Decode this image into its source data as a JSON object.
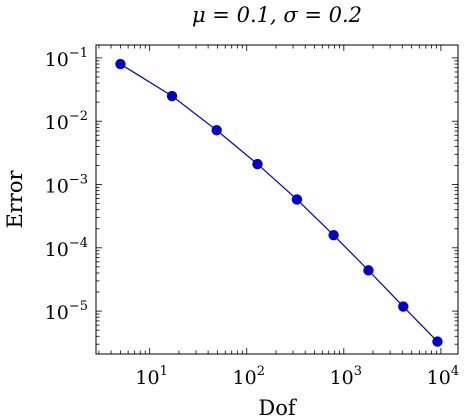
{
  "chart_data": {
    "type": "line",
    "title": "μ = 0.1, σ = 0.2",
    "xlabel": "Dof",
    "ylabel": "Error",
    "xscale": "log",
    "yscale": "log",
    "xlim": [
      2.8,
      15000
    ],
    "ylim": [
      2.1e-06,
      0.16
    ],
    "grid": false,
    "legend": "none",
    "x_ticks": [
      {
        "base": "10",
        "exp": "1",
        "value": 10
      },
      {
        "base": "10",
        "exp": "2",
        "value": 100
      },
      {
        "base": "10",
        "exp": "3",
        "value": 1000
      },
      {
        "base": "10",
        "exp": "4",
        "value": 10000
      }
    ],
    "y_ticks": [
      {
        "base": "10",
        "exp": "−1",
        "value": 0.1
      },
      {
        "base": "10",
        "exp": "−2",
        "value": 0.01
      },
      {
        "base": "10",
        "exp": "−3",
        "value": 0.001
      },
      {
        "base": "10",
        "exp": "−4",
        "value": 0.0001
      },
      {
        "base": "10",
        "exp": "−5",
        "value": 1e-05
      }
    ],
    "series": [
      {
        "color": "#0000cc",
        "x": [
          5,
          17,
          49,
          129,
          329,
          785,
          1793,
          4097,
          9217
        ],
        "y": [
          0.08,
          0.025,
          0.0072,
          0.0021,
          0.00058,
          0.000158,
          4.4e-05,
          1.18e-05,
          3.3e-06
        ]
      }
    ]
  }
}
